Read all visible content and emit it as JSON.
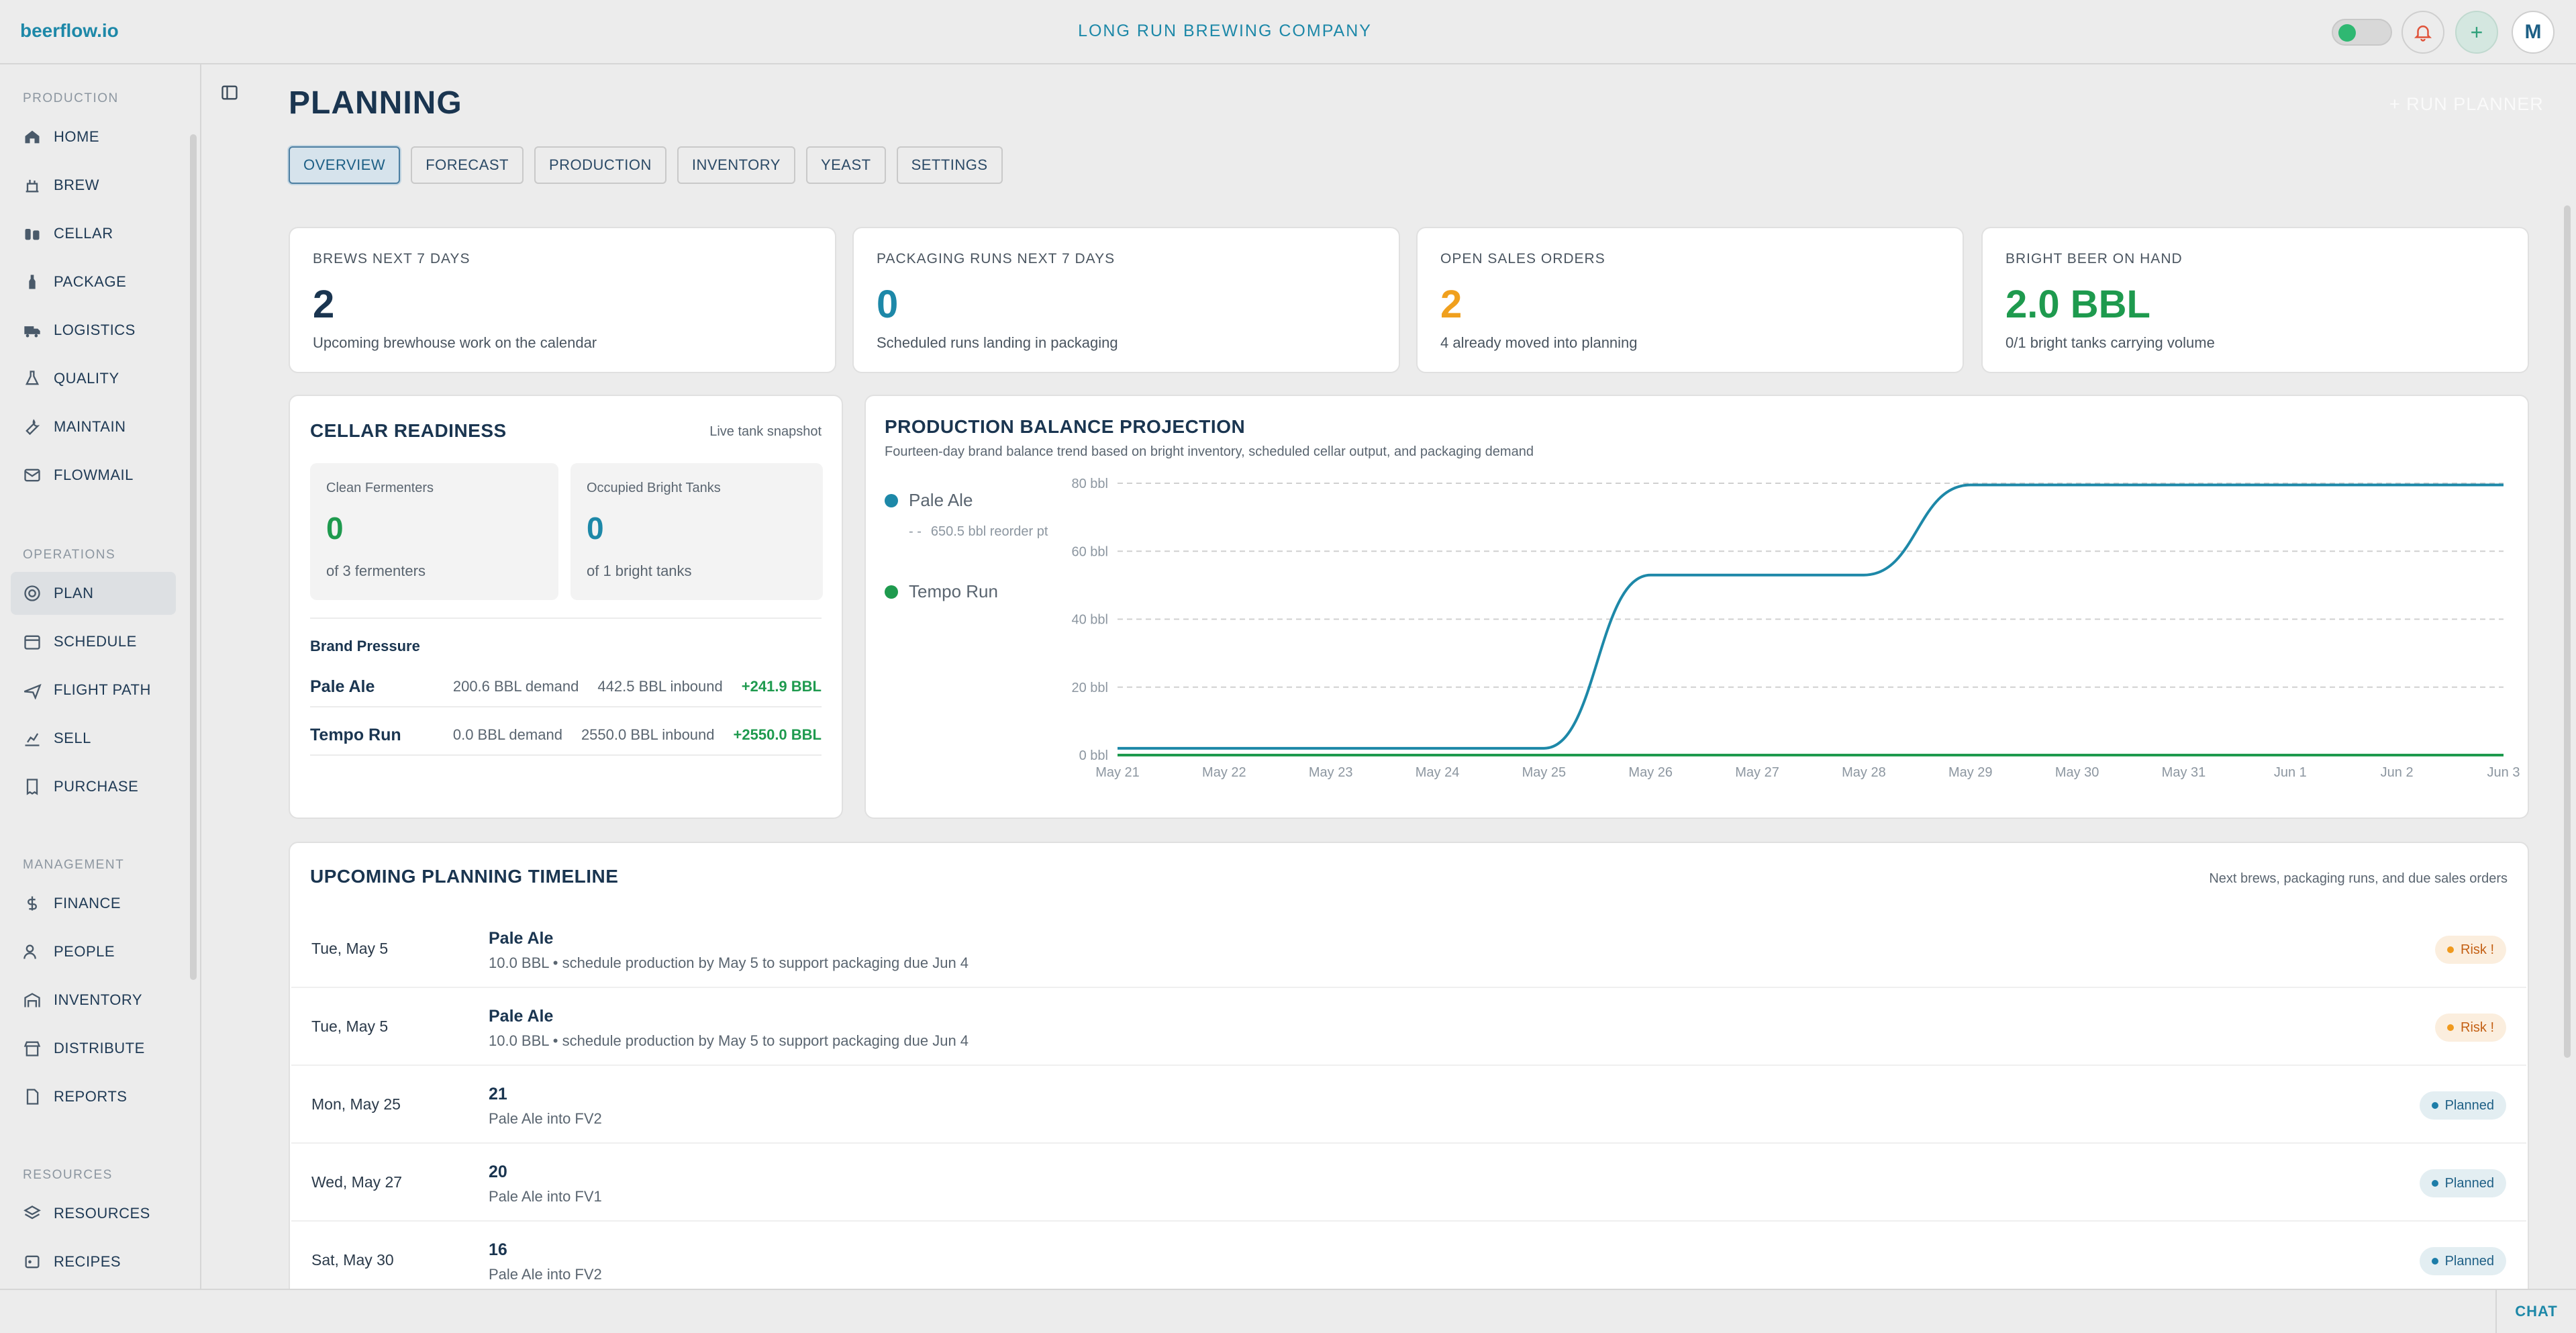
{
  "app": {
    "logo": "beerflow.io",
    "company": "LONG RUN BREWING COMPANY",
    "avatar_initial": "M",
    "plus": "+"
  },
  "sidebar": {
    "sections": [
      {
        "label": "PRODUCTION"
      },
      {
        "label": "OPERATIONS"
      },
      {
        "label": "MANAGEMENT"
      },
      {
        "label": "RESOURCES"
      }
    ],
    "items": [
      {
        "label": "HOME",
        "icon": "home-icon"
      },
      {
        "label": "BREW",
        "icon": "kettle-icon"
      },
      {
        "label": "CELLAR",
        "icon": "tanks-icon"
      },
      {
        "label": "PACKAGE",
        "icon": "bottle-icon"
      },
      {
        "label": "LOGISTICS",
        "icon": "truck-icon"
      },
      {
        "label": "QUALITY",
        "icon": "flask-icon"
      },
      {
        "label": "MAINTAIN",
        "icon": "wrench-icon"
      },
      {
        "label": "FLOWMAIL",
        "icon": "mail-icon"
      },
      {
        "label": "PLAN",
        "icon": "target-icon",
        "active": true
      },
      {
        "label": "SCHEDULE",
        "icon": "calendar-icon"
      },
      {
        "label": "FLIGHT PATH",
        "icon": "plane-icon"
      },
      {
        "label": "SELL",
        "icon": "chart-icon"
      },
      {
        "label": "PURCHASE",
        "icon": "receipt-icon"
      },
      {
        "label": "FINANCE",
        "icon": "dollar-icon"
      },
      {
        "label": "PEOPLE",
        "icon": "users-icon"
      },
      {
        "label": "INVENTORY",
        "icon": "warehouse-icon"
      },
      {
        "label": "DISTRIBUTE",
        "icon": "store-icon"
      },
      {
        "label": "REPORTS",
        "icon": "report-icon"
      },
      {
        "label": "RESOURCES",
        "icon": "layers-icon"
      },
      {
        "label": "RECIPES",
        "icon": "recipe-icon"
      }
    ]
  },
  "page": {
    "title": "PLANNING",
    "run_planner": "+ RUN PLANNER",
    "tabs": [
      "OVERVIEW",
      "FORECAST",
      "PRODUCTION",
      "INVENTORY",
      "YEAST",
      "SETTINGS"
    ]
  },
  "kpis": [
    {
      "label": "BREWS NEXT 7 DAYS",
      "value": "2",
      "sub": "Upcoming brewhouse work on the calendar",
      "color": "#1a3550"
    },
    {
      "label": "PACKAGING RUNS NEXT 7 DAYS",
      "value": "0",
      "sub": "Scheduled runs landing in packaging",
      "color": "#1d88a8"
    },
    {
      "label": "OPEN SALES ORDERS",
      "value": "2",
      "sub": "4 already moved into planning",
      "color": "#f0a01e"
    },
    {
      "label": "BRIGHT BEER ON HAND",
      "value": "2.0 BBL",
      "sub": "0/1 bright tanks carrying volume",
      "color": "#1e9a4e"
    }
  ],
  "cellar": {
    "title": "CELLAR READINESS",
    "note": "Live tank snapshot",
    "fermenters": {
      "label": "Clean Fermenters",
      "value": "0",
      "sub": "of 3 fermenters"
    },
    "bright": {
      "label": "Occupied Bright Tanks",
      "value": "0",
      "sub": "of 1 bright tanks"
    },
    "pressure_title": "Brand Pressure",
    "brands": [
      {
        "name": "Pale Ale",
        "demand": "200.6 BBL demand",
        "inbound": "442.5 BBL inbound",
        "net": "+241.9 BBL"
      },
      {
        "name": "Tempo Run",
        "demand": "0.0 BBL demand",
        "inbound": "2550.0 BBL inbound",
        "net": "+2550.0 BBL"
      }
    ]
  },
  "projection": {
    "title": "PRODUCTION BALANCE PROJECTION",
    "subtitle": "Fourteen-day brand balance trend based on bright inventory, scheduled cellar output, and packaging demand",
    "reorder_note": "650.5 bbl reorder pt"
  },
  "chart_data": {
    "type": "line",
    "x": [
      "May 21",
      "May 22",
      "May 23",
      "May 24",
      "May 25",
      "May 26",
      "May 27",
      "May 28",
      "May 29",
      "May 30",
      "May 31",
      "Jun 1",
      "Jun 2",
      "Jun 3"
    ],
    "y_ticks": [
      "0 bbl",
      "20 bbl",
      "40 bbl",
      "60 bbl",
      "80 bbl"
    ],
    "ylim": [
      0,
      80
    ],
    "grid": true,
    "legend_position": "left",
    "series": [
      {
        "name": "Pale Ale",
        "color": "#1d88a8",
        "values": [
          2,
          2,
          2,
          2,
          2,
          53,
          53,
          53,
          79.5,
          79.5,
          79.5,
          79.5,
          79.5,
          79.5
        ]
      },
      {
        "name": "Tempo Run",
        "color": "#1e9a4e",
        "values": [
          0,
          0,
          0,
          0,
          0,
          0,
          0,
          0,
          0,
          0,
          0,
          0,
          0,
          0
        ]
      }
    ]
  },
  "timeline": {
    "title": "UPCOMING PLANNING TIMELINE",
    "note": "Next brews, packaging runs, and due sales orders",
    "rows": [
      {
        "date": "Tue, May 5",
        "title": "Pale Ale",
        "desc": "10.0 BBL • schedule production by May 5 to support packaging due Jun 4",
        "status": "Risk !",
        "kind": "risk"
      },
      {
        "date": "Tue, May 5",
        "title": "Pale Ale",
        "desc": "10.0 BBL • schedule production by May 5 to support packaging due Jun 4",
        "status": "Risk !",
        "kind": "risk"
      },
      {
        "date": "Mon, May 25",
        "title": "21",
        "desc": "Pale Ale into FV2",
        "status": "Planned",
        "kind": "planned"
      },
      {
        "date": "Wed, May 27",
        "title": "20",
        "desc": "Pale Ale into FV1",
        "status": "Planned",
        "kind": "planned"
      },
      {
        "date": "Sat, May 30",
        "title": "16",
        "desc": "Pale Ale into FV2",
        "status": "Planned",
        "kind": "planned"
      }
    ]
  },
  "bottom": {
    "chat": "CHAT"
  }
}
